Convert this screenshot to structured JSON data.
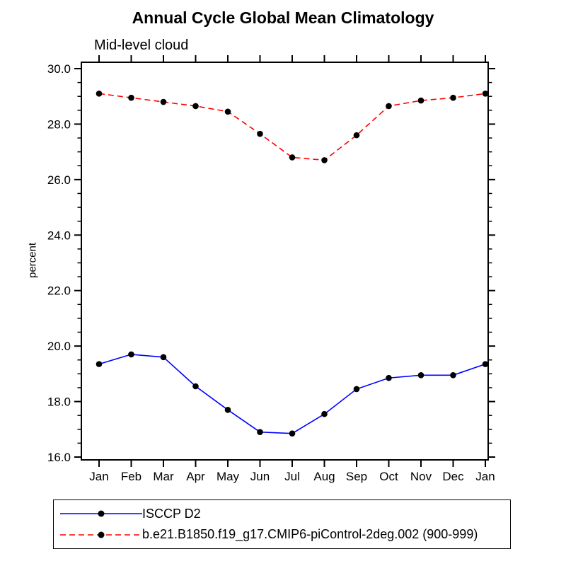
{
  "title": "Annual Cycle Global Mean Climatology",
  "chart_data": {
    "type": "line",
    "title": "Annual Cycle Global Mean Climatology",
    "subtitle": "Mid-level cloud",
    "xlabel": "",
    "ylabel": "percent",
    "x_tick_labels": [
      "Jan",
      "Feb",
      "Mar",
      "Apr",
      "May",
      "Jun",
      "Jul",
      "Aug",
      "Sep",
      "Oct",
      "Nov",
      "Dec",
      "Jan"
    ],
    "y_ticks": [
      16.0,
      18.0,
      20.0,
      22.0,
      24.0,
      26.0,
      28.0,
      30.0
    ],
    "y_tick_labels": [
      "16.0",
      "18.0",
      "20.0",
      "22.0",
      "24.0",
      "26.0",
      "28.0",
      "30.0"
    ],
    "y_minor_step": 0.5,
    "ylim": [
      15.9,
      30.25
    ],
    "grid": false,
    "legend_position": "bottom",
    "marker": "filled-circle",
    "marker_color": "#000000",
    "series": [
      {
        "name": "ISCCP D2",
        "color": "#0000ff",
        "line_style": "solid",
        "values": [
          19.35,
          19.7,
          19.6,
          18.55,
          17.7,
          16.9,
          16.85,
          17.55,
          18.45,
          18.85,
          18.95,
          18.95,
          19.35
        ]
      },
      {
        "name": "b.e21.B1850.f19_g17.CMIP6-piControl-2deg.002 (900-999)",
        "color": "#ff0000",
        "line_style": "dashed",
        "values": [
          29.1,
          28.95,
          28.8,
          28.65,
          28.45,
          27.65,
          26.8,
          26.7,
          27.6,
          28.65,
          28.85,
          28.95,
          29.1
        ]
      }
    ]
  }
}
